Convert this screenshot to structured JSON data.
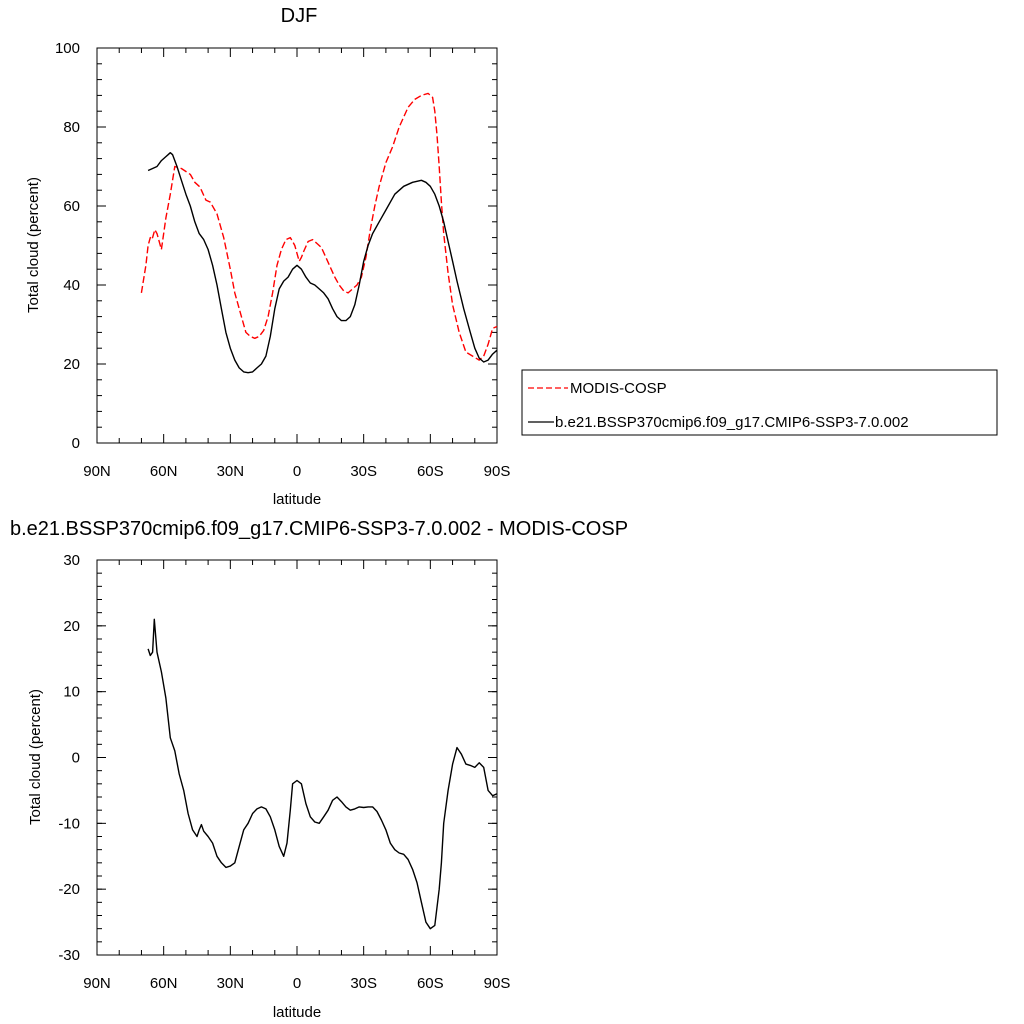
{
  "chart_data": [
    {
      "type": "line",
      "title": "DJF",
      "xlabel": "latitude",
      "ylabel": "Total cloud (percent)",
      "xlim": [
        90,
        -90
      ],
      "ylim": [
        0,
        100
      ],
      "xticks": [
        90,
        60,
        30,
        0,
        -30,
        -60,
        -90
      ],
      "xtick_labels": [
        "90N",
        "60N",
        "30N",
        "0",
        "30S",
        "60S",
        "90S"
      ],
      "yticks": [
        0,
        20,
        40,
        60,
        80,
        100
      ],
      "ytick_labels": [
        "0",
        "20",
        "40",
        "60",
        "80",
        "100"
      ],
      "legend_position": "right",
      "series": [
        {
          "name": "MODIS-COSP",
          "color": "#ff0000",
          "dash": "dashed",
          "x": [
            70,
            68,
            67,
            66,
            65.5,
            65,
            64,
            63,
            61,
            59,
            57,
            55,
            52,
            48,
            46,
            44,
            43,
            41,
            39,
            36,
            33,
            30,
            28,
            25,
            23,
            21,
            19,
            17,
            15,
            13,
            11,
            9,
            7,
            5,
            3,
            2,
            1,
            0,
            -1,
            -2,
            -3,
            -5,
            -7,
            -9,
            -11,
            -13,
            -15,
            -17,
            -19,
            -21,
            -23,
            -25,
            -27,
            -29,
            -31,
            -33,
            -35,
            -37,
            -40,
            -43,
            -46,
            -50,
            -53,
            -56,
            -59,
            -61,
            -62,
            -63,
            -64,
            -65,
            -66,
            -68,
            -70,
            -73,
            -76,
            -79,
            -82,
            -84,
            -86,
            -88,
            -90
          ],
          "y": [
            38,
            45,
            50,
            52,
            51.5,
            52,
            54,
            53,
            49,
            57,
            63,
            70,
            69.5,
            68,
            66,
            65,
            64,
            61.5,
            61,
            58,
            52,
            44,
            38,
            32,
            28,
            27,
            26.5,
            27,
            28.5,
            32,
            38,
            45,
            49,
            51.5,
            52,
            51,
            50,
            48,
            46,
            47,
            48.5,
            51,
            51.5,
            50.5,
            49.5,
            47,
            44.5,
            42,
            40,
            38.5,
            38,
            39,
            40,
            42,
            47,
            54,
            60,
            65,
            71,
            75,
            80,
            85,
            87,
            88,
            88.5,
            87.5,
            84,
            78,
            70,
            61,
            53,
            43,
            35,
            28,
            23,
            22,
            21,
            22,
            25,
            29,
            29.5
          ]
        },
        {
          "name": "b.e21.BSSP370cmip6.f09_g17.CMIP6-SSP3-7.0.002",
          "color": "#000000",
          "dash": "solid",
          "x": [
            67,
            65,
            63,
            61,
            59,
            58,
            57,
            56,
            54,
            52,
            50,
            48,
            46,
            44,
            42,
            40,
            38,
            36,
            34,
            32,
            30,
            28,
            26,
            24,
            22,
            20,
            18,
            16,
            14,
            12,
            10,
            8,
            6,
            4,
            2,
            0,
            -2,
            -4,
            -6,
            -8,
            -10,
            -12,
            -14,
            -16,
            -18,
            -20,
            -22,
            -24,
            -26,
            -28,
            -30,
            -32,
            -34,
            -37,
            -40,
            -44,
            -48,
            -52,
            -56,
            -58,
            -60,
            -62,
            -64,
            -66,
            -68,
            -70,
            -72,
            -75,
            -78,
            -80,
            -82,
            -84,
            -86,
            -88,
            -90
          ],
          "y": [
            69,
            69.5,
            70,
            71.5,
            72.5,
            73,
            73.5,
            73,
            70,
            66.5,
            63,
            60,
            56,
            53,
            51.5,
            49,
            45,
            40,
            34,
            28,
            24,
            21,
            19,
            18,
            17.8,
            18,
            19,
            20,
            22,
            27,
            34,
            39,
            41,
            42,
            44,
            45,
            44,
            42,
            40.5,
            40,
            39,
            38,
            36.5,
            34,
            32,
            31,
            31,
            32,
            35,
            40,
            46,
            50,
            53,
            56,
            59,
            63,
            65,
            66,
            66.5,
            66,
            65,
            63,
            60,
            56,
            51,
            46,
            41,
            34,
            28,
            24,
            21.5,
            20.5,
            21,
            22.5,
            23.5
          ]
        }
      ]
    },
    {
      "type": "line",
      "title": "b.e21.BSSP370cmip6.f09_g17.CMIP6-SSP3-7.0.002 - MODIS-COSP",
      "xlabel": "latitude",
      "ylabel": "Total cloud (percent)",
      "xlim": [
        90,
        -90
      ],
      "ylim": [
        -30,
        30
      ],
      "xticks": [
        90,
        60,
        30,
        0,
        -30,
        -60,
        -90
      ],
      "xtick_labels": [
        "90N",
        "60N",
        "30N",
        "0",
        "30S",
        "60S",
        "90S"
      ],
      "yticks": [
        -30,
        -20,
        -10,
        0,
        10,
        20,
        30
      ],
      "ytick_labels": [
        "-30",
        "-20",
        "-10",
        "0",
        "10",
        "20",
        "30"
      ],
      "series": [
        {
          "color": "#000000",
          "dash": "solid",
          "x": [
            67,
            66,
            65,
            64.2,
            63,
            61,
            59,
            57,
            55,
            53,
            51,
            49,
            47,
            45,
            44,
            43,
            42,
            40,
            38,
            36,
            34,
            32,
            30,
            28,
            26,
            24,
            22,
            20,
            18,
            16,
            14,
            12,
            10,
            8,
            6,
            4.5,
            3,
            2,
            0,
            -2,
            -4,
            -6,
            -8,
            -10,
            -12,
            -14,
            -16,
            -18,
            -20,
            -22,
            -24,
            -26,
            -28,
            -30,
            -32,
            -34,
            -36,
            -38,
            -40,
            -42,
            -44,
            -46,
            -48,
            -50,
            -52,
            -54,
            -56,
            -58,
            -60,
            -62,
            -64,
            -65,
            -66,
            -68,
            -70,
            -72,
            -74,
            -76,
            -78,
            -80,
            -82,
            -84,
            -86,
            -88,
            -90
          ],
          "y": [
            16.5,
            15.5,
            16,
            21,
            16,
            13,
            9,
            3,
            1,
            -2.5,
            -5,
            -8.5,
            -11,
            -12,
            -11,
            -10.2,
            -11.2,
            -12,
            -13,
            -15,
            -16,
            -16.7,
            -16.5,
            -16,
            -13.5,
            -11,
            -10,
            -8.5,
            -7.8,
            -7.5,
            -7.8,
            -9,
            -11,
            -13.5,
            -15,
            -13,
            -8,
            -4,
            -3.5,
            -4,
            -7,
            -9,
            -9.8,
            -10,
            -9,
            -8,
            -6.5,
            -6,
            -6.7,
            -7.5,
            -8,
            -7.8,
            -7.5,
            -7.6,
            -7.5,
            -7.5,
            -8.2,
            -9.5,
            -11,
            -13,
            -14,
            -14.5,
            -14.7,
            -15.5,
            -17,
            -19,
            -22,
            -25,
            -26,
            -25.5,
            -20,
            -16,
            -10,
            -5,
            -1,
            1.5,
            0.5,
            -1,
            -1.2,
            -1.5,
            -0.8,
            -1.5,
            -5,
            -5.8,
            -5.5
          ]
        }
      ]
    }
  ]
}
